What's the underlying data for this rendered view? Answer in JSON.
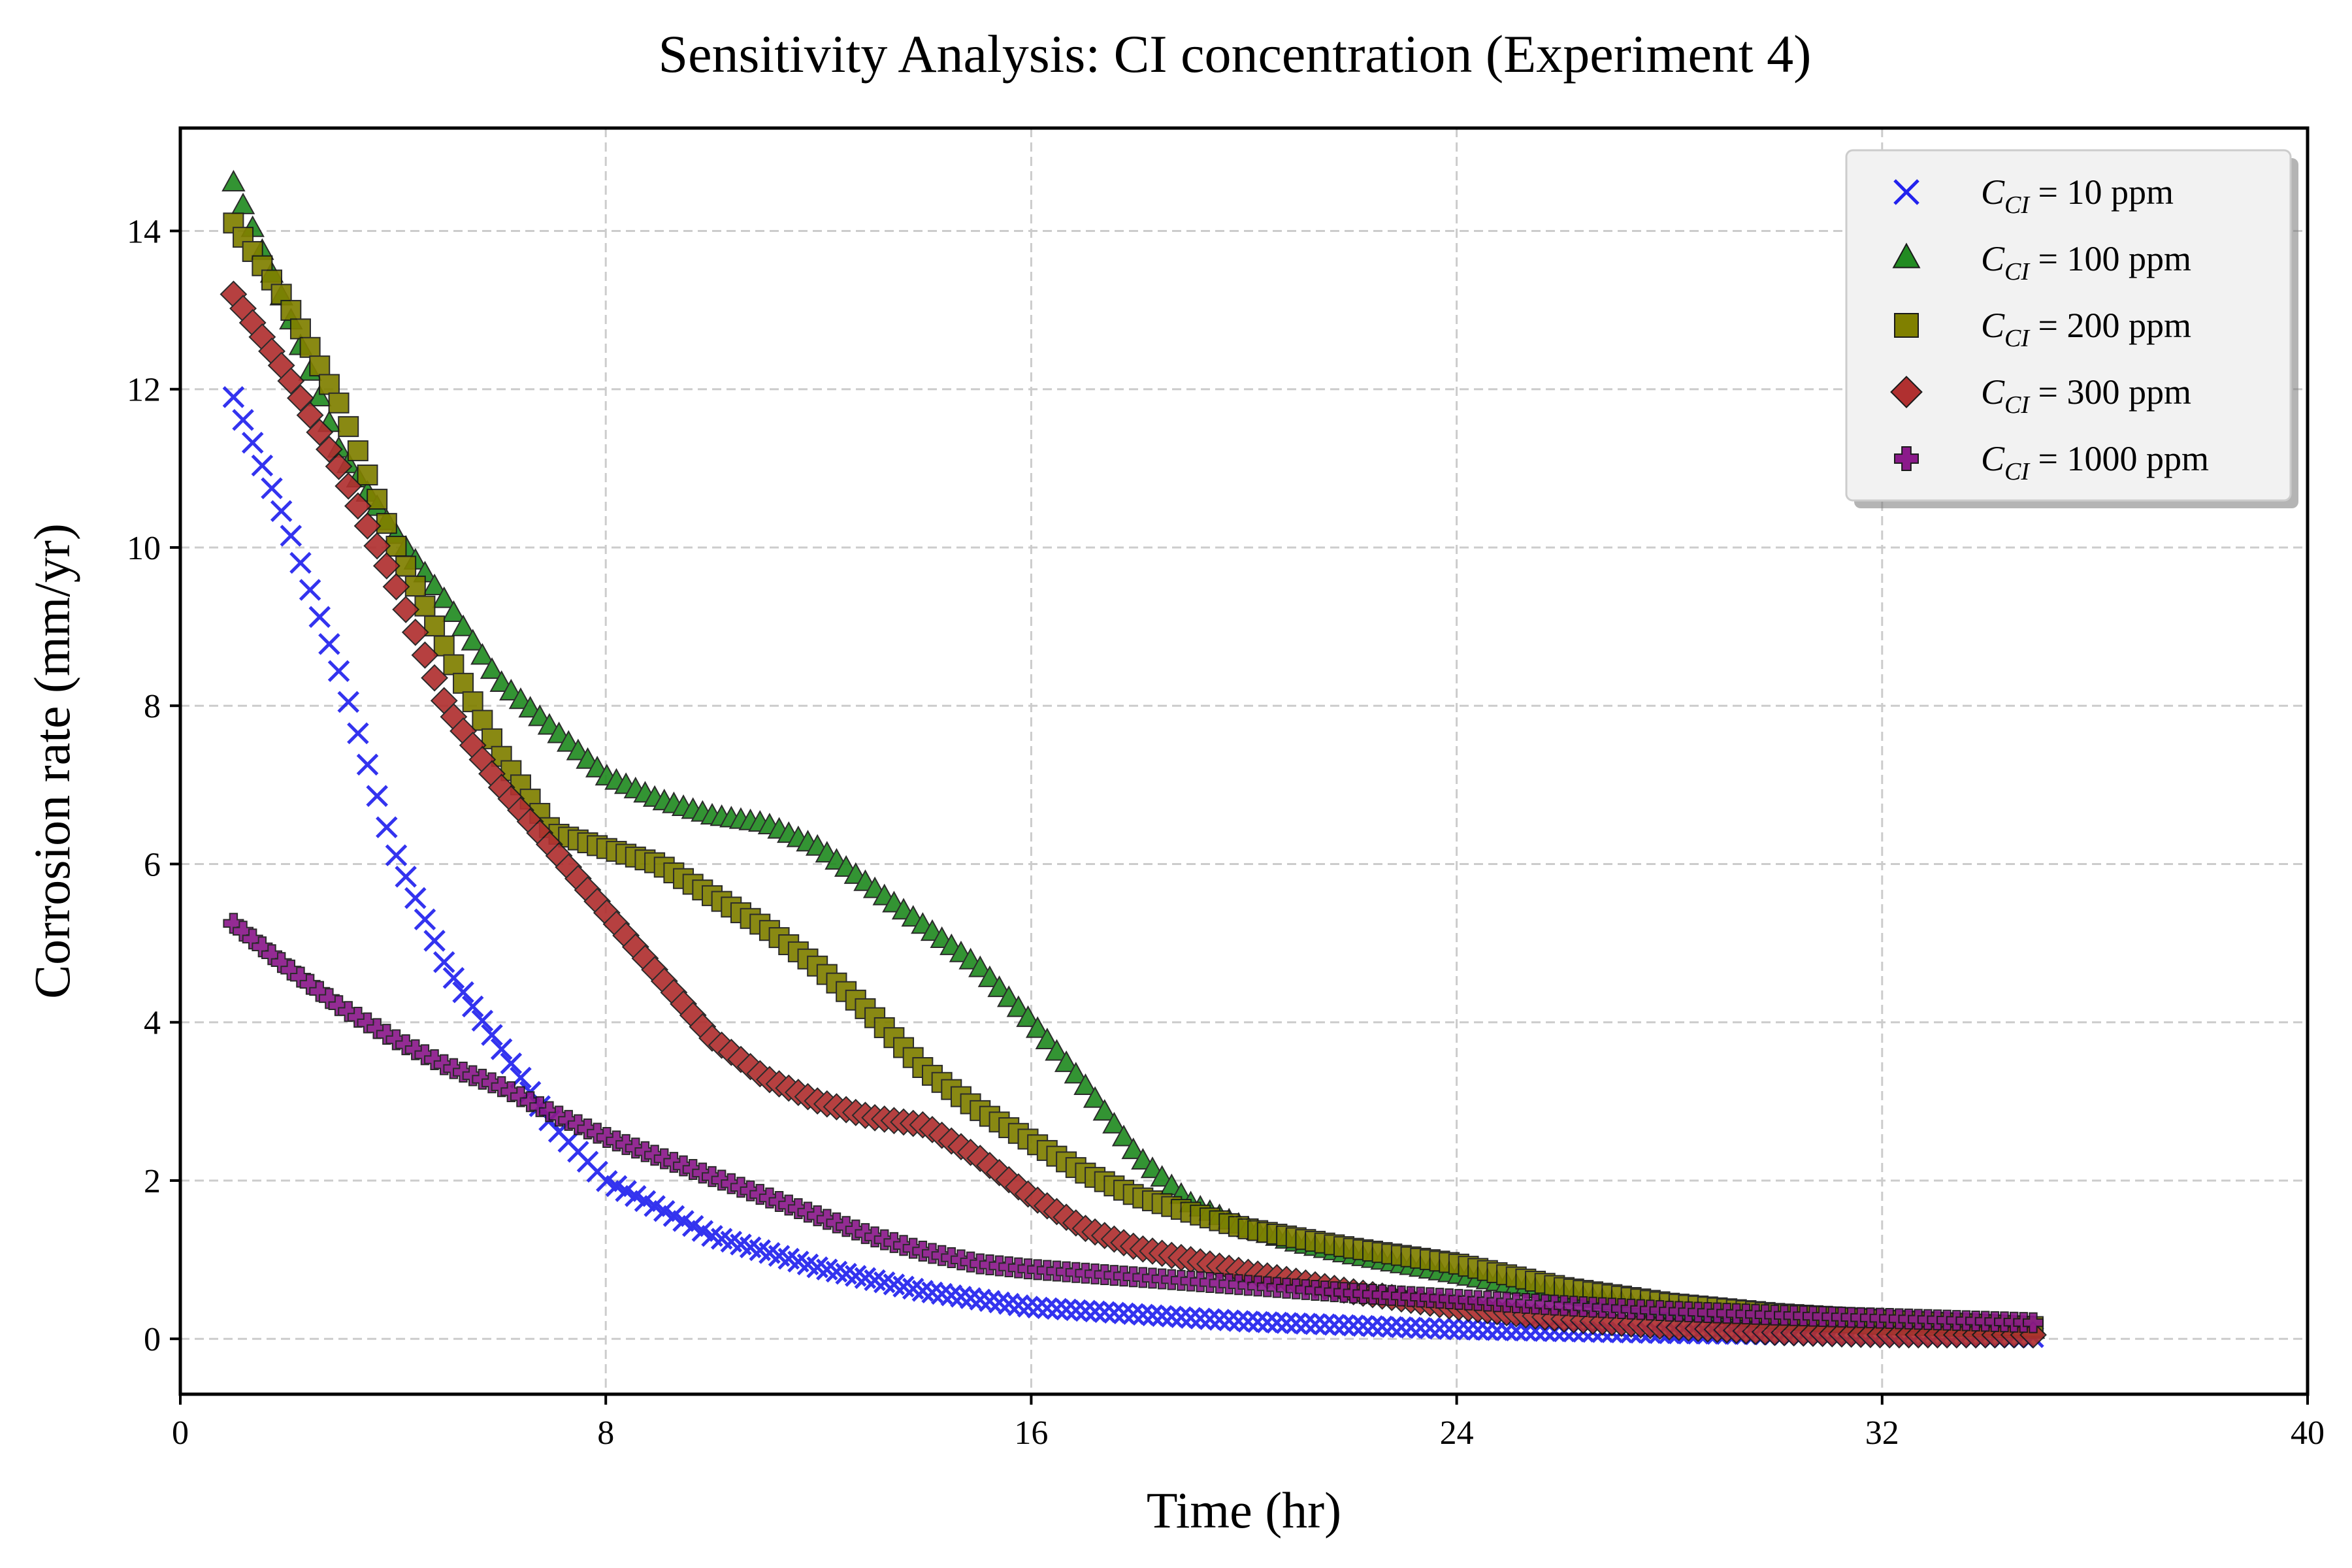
{
  "chart_data": {
    "type": "scatter",
    "title": "Sensitivity Analysis: CI concentration (Experiment 4)",
    "xlabel": "Time (hr)",
    "ylabel": "Corrosion rate (mm/yr)",
    "xlim": [
      0,
      40
    ],
    "ylim": [
      -0.7,
      15.3
    ],
    "xticks": [
      0,
      8,
      16,
      24,
      32,
      40
    ],
    "yticks": [
      0,
      2,
      4,
      6,
      8,
      10,
      12,
      14
    ],
    "grid": true,
    "legend_position": "top-right",
    "legend_prefix": "C",
    "legend_subscript": "CI",
    "series": [
      {
        "name": "= 10 ppm",
        "marker": "x",
        "color": "#2222ee",
        "x": [
          1,
          2,
          3,
          4,
          5,
          6,
          7,
          8,
          10,
          12,
          14,
          16,
          20,
          24,
          28,
          32,
          35
        ],
        "y": [
          11.9,
          10.3,
          8.4,
          6.2,
          4.7,
          3.7,
          2.7,
          2.0,
          1.3,
          0.9,
          0.6,
          0.4,
          0.22,
          0.12,
          0.07,
          0.04,
          0.02
        ]
      },
      {
        "name": "= 100 ppm",
        "marker": "triangle",
        "color": "#228b22",
        "x": [
          1,
          2,
          3,
          4,
          5,
          6,
          7,
          8,
          9,
          10,
          11,
          12,
          13,
          14,
          15,
          16,
          17,
          18,
          19,
          20,
          21,
          22,
          24,
          26,
          28,
          30,
          32,
          35
        ],
        "y": [
          14.6,
          13.0,
          11.2,
          10.2,
          9.3,
          8.3,
          7.7,
          7.1,
          6.8,
          6.6,
          6.5,
          6.2,
          5.7,
          5.2,
          4.7,
          4.0,
          3.2,
          2.3,
          1.7,
          1.4,
          1.2,
          1.05,
          0.8,
          0.55,
          0.35,
          0.22,
          0.15,
          0.1
        ]
      },
      {
        "name": "= 200 ppm",
        "marker": "square",
        "color": "#808000",
        "x": [
          1,
          2,
          3,
          4,
          5,
          6,
          7,
          8,
          9,
          10,
          11,
          12,
          13,
          14,
          15,
          16,
          17,
          18,
          19,
          20,
          22,
          24,
          26,
          28,
          30,
          32,
          35
        ],
        "y": [
          14.1,
          13.1,
          11.8,
          10.1,
          8.7,
          7.4,
          6.4,
          6.2,
          6.0,
          5.6,
          5.2,
          4.7,
          4.1,
          3.4,
          2.9,
          2.5,
          2.1,
          1.8,
          1.6,
          1.4,
          1.15,
          0.95,
          0.65,
          0.45,
          0.32,
          0.24,
          0.15
        ]
      },
      {
        "name": "= 300 ppm",
        "marker": "diamond",
        "color": "#b03030",
        "x": [
          1,
          2,
          3,
          4,
          5,
          6,
          7,
          8,
          9,
          10,
          11,
          12,
          13,
          14,
          15,
          16,
          17,
          18,
          19,
          20,
          22,
          24,
          26,
          28,
          30,
          32,
          35
        ],
        "y": [
          13.2,
          12.2,
          11.0,
          9.6,
          8.0,
          7.0,
          6.2,
          5.4,
          4.6,
          3.8,
          3.3,
          3.0,
          2.8,
          2.7,
          2.3,
          1.8,
          1.4,
          1.15,
          1.0,
          0.85,
          0.6,
          0.4,
          0.25,
          0.15,
          0.08,
          0.05,
          0.05
        ]
      },
      {
        "name": "= 1000 ppm",
        "marker": "plus",
        "color": "#8b1a8b",
        "x": [
          1,
          2,
          3,
          4,
          5,
          6,
          7,
          8,
          9,
          10,
          11,
          12,
          13,
          14,
          15,
          16,
          18,
          20,
          22,
          24,
          26,
          28,
          30,
          32,
          35
        ],
        "y": [
          5.25,
          4.7,
          4.2,
          3.8,
          3.45,
          3.2,
          2.85,
          2.55,
          2.3,
          2.05,
          1.8,
          1.55,
          1.3,
          1.1,
          0.95,
          0.88,
          0.78,
          0.68,
          0.58,
          0.5,
          0.42,
          0.35,
          0.3,
          0.26,
          0.2
        ]
      }
    ]
  }
}
